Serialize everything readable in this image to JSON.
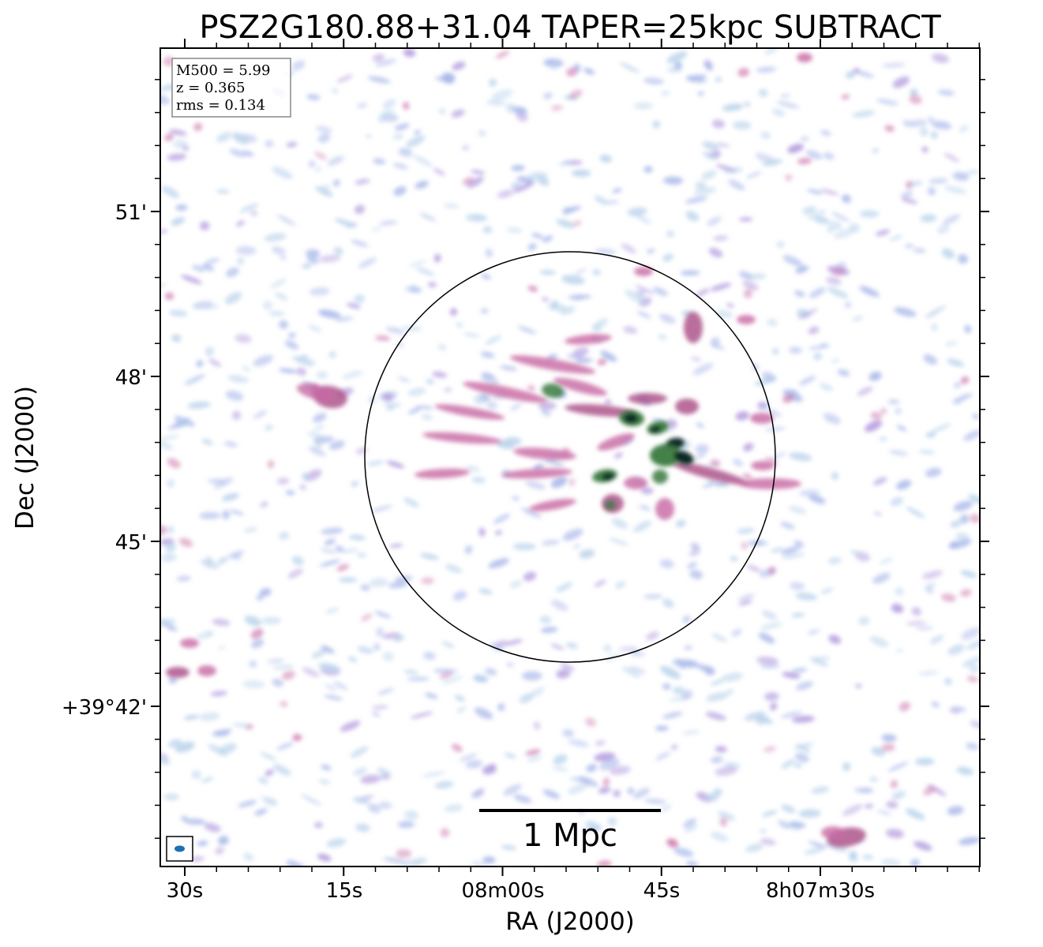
{
  "figure": {
    "title": "PSZ2G180.88+31.04 TAPER=25kpc SUBTRACT",
    "xlabel": "RA (J2000)",
    "ylabel": "Dec (J2000)",
    "x_ticks": [
      "30s",
      "15s",
      "08m00s",
      "45s",
      "8h07m30s"
    ],
    "y_ticks": [
      "51'",
      "48'",
      "45'",
      "+39°42'"
    ],
    "info_box": {
      "line1": "M500 = 5.99",
      "line2": "z = 0.365",
      "line3": "rms = 0.134"
    },
    "scale_bar_label": "1 Mpc",
    "colors": {
      "frame": "#000000",
      "noise_light": "#bcd4ec",
      "noise_blue": "#a9b8ea",
      "noise_violet": "#b59ddf",
      "emission_pink": "#c86aa4",
      "emission_magenta": "#a94e86",
      "emission_green": "#3a7a3e",
      "emission_dark": "#0c2a26",
      "beam": "#1f6fb4"
    }
  }
}
